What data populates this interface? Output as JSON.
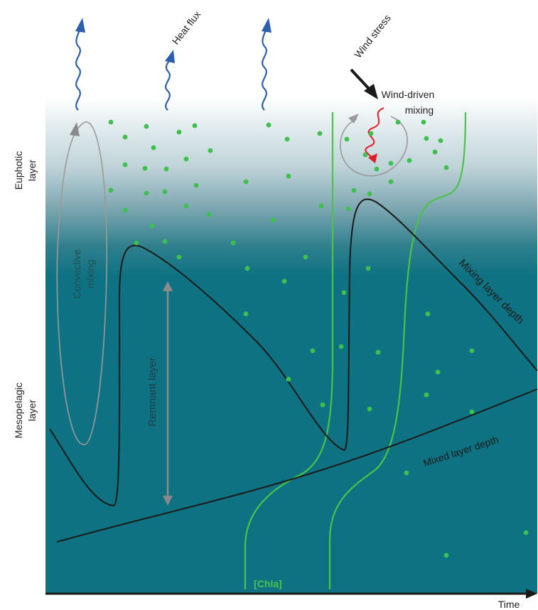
{
  "labels": {
    "euphotic_line1": "Euphotic",
    "euphotic_line2": "layer",
    "mesopelagic_line1": "Mesopelagic",
    "mesopelagic_line2": "layer",
    "heat_flux": "Heat flux",
    "wind_stress": "Wind stress",
    "wind_driven_line1": "Wind-driven",
    "wind_driven_line2": "mixing",
    "convective_line1": "Convective",
    "convective_line2": "mixing",
    "remnant_layer": "Remnant layer",
    "mixing_layer_depth": "Mixing layer depth",
    "mixed_layer_depth": "Mixed layer depth",
    "chla": "[Chla]",
    "time": "Time"
  },
  "colors": {
    "ocean_deep": "#0e7282",
    "ocean_surface": "#ffffff",
    "phytoplankton": "#3fbf4f",
    "chla_line": "#4cc24a",
    "heat_flux_arrow": "#2e5fad",
    "wind_mixing_arrow": "#e01b24",
    "black_curve": "#1a1a1a",
    "gray_arrow": "#8a8a8a"
  }
}
